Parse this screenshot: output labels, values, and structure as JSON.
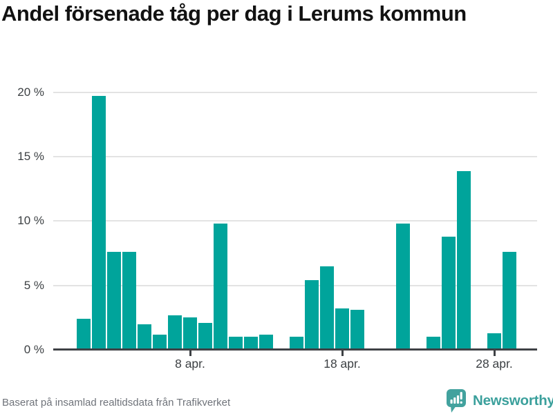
{
  "header": {
    "title": "Andel försenade tåg per dag i Lerums kommun"
  },
  "chart_data": {
    "type": "bar",
    "title": "Andel försenade tåg per dag i Lerums kommun",
    "unit": "%",
    "categories": [
      "1 apr.",
      "2 apr.",
      "3 apr.",
      "4 apr.",
      "5 apr.",
      "6 apr.",
      "7 apr.",
      "8 apr.",
      "9 apr.",
      "10 apr.",
      "11 apr.",
      "12 apr.",
      "13 apr.",
      "14 apr.",
      "15 apr.",
      "16 apr.",
      "17 apr.",
      "18 apr.",
      "19 apr.",
      "20 apr.",
      "21 apr.",
      "22 apr.",
      "23 apr.",
      "24 apr.",
      "25 apr.",
      "26 apr.",
      "27 apr.",
      "28 apr.",
      "29 apr.",
      "30 apr."
    ],
    "values": [
      2.4,
      19.7,
      7.6,
      7.6,
      2.0,
      1.2,
      2.7,
      2.5,
      2.1,
      9.8,
      1.0,
      1.0,
      1.2,
      null,
      1.0,
      5.4,
      6.5,
      3.2,
      3.1,
      null,
      null,
      9.8,
      null,
      1.0,
      8.8,
      13.9,
      null,
      1.3,
      7.6,
      null
    ],
    "y_ticks": [
      {
        "value": 0,
        "label": "0 %"
      },
      {
        "value": 5,
        "label": "5 %"
      },
      {
        "value": 10,
        "label": "10 %"
      },
      {
        "value": 15,
        "label": "15 %"
      },
      {
        "value": 20,
        "label": "20 %"
      }
    ],
    "x_ticks": [
      {
        "day": 8,
        "label": "8 apr."
      },
      {
        "day": 18,
        "label": "18 apr."
      },
      {
        "day": 28,
        "label": "28 apr."
      }
    ],
    "ylim": [
      0,
      21.8
    ],
    "grid": true,
    "legend": false,
    "bar_color": "#00a49b"
  },
  "footer": {
    "source_text": "Baserat på insamlad realtidsdata från Trafikverket"
  },
  "brand": {
    "name": "Newsworthy",
    "icon": "bar-chart-speech-bubble-icon",
    "color": "#42a29e"
  },
  "colors": {
    "background": "#ffffff",
    "bar": "#00a49b",
    "grid": "#e3e3e3",
    "axis": "#3e4145",
    "tick_label": "#3c4043",
    "title": "#121212",
    "footer_text": "#6f737a",
    "brand_teal": "#3ba09c"
  }
}
